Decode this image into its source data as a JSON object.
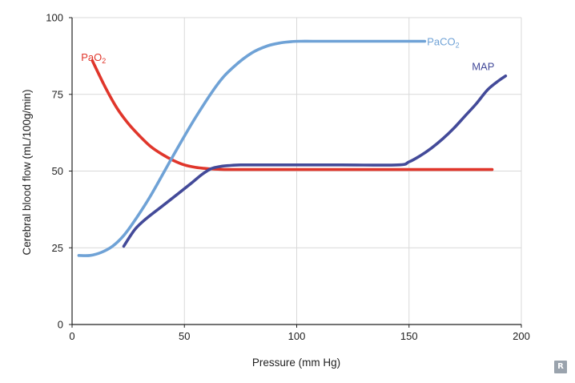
{
  "chart_data": {
    "type": "line",
    "title": "",
    "xlabel": "Pressure (mm Hg)",
    "ylabel": "Cerebral blood flow (mL/100g/min)",
    "xlim": [
      0,
      200
    ],
    "ylim": [
      0,
      100
    ],
    "xticks": [
      0,
      50,
      100,
      150,
      200
    ],
    "yticks": [
      0,
      25,
      50,
      75,
      100
    ],
    "grid": true,
    "series": [
      {
        "name": "PaO2",
        "label_main": "PaO",
        "label_sub": "2",
        "color": "#e0362b",
        "label_at": {
          "x": 4,
          "y": 87,
          "anchor": "start"
        },
        "x": [
          9,
          15,
          20,
          25,
          30,
          35,
          40,
          45,
          50,
          55,
          60,
          65,
          70,
          80,
          100,
          150,
          187
        ],
        "y": [
          86,
          77,
          70.5,
          65.5,
          61.5,
          58,
          55.5,
          53.5,
          52,
          51.2,
          50.8,
          50.6,
          50.5,
          50.5,
          50.5,
          50.5,
          50.5
        ]
      },
      {
        "name": "PaCO2",
        "label_main": "PaCO",
        "label_sub": "2",
        "color": "#6fa2d6",
        "label_at": {
          "x": 158,
          "y": 92,
          "anchor": "start"
        },
        "x": [
          3,
          8,
          13,
          18,
          23,
          28,
          35,
          45,
          55,
          65,
          72,
          80,
          87,
          93,
          98,
          102,
          107,
          120,
          140,
          157
        ],
        "y": [
          22.5,
          22.5,
          23.5,
          25.5,
          29,
          34,
          42,
          55,
          67.5,
          78.5,
          84,
          88.5,
          90.8,
          91.8,
          92.2,
          92.3,
          92.3,
          92.3,
          92.3,
          92.3
        ]
      },
      {
        "name": "MAP",
        "label_main": "MAP",
        "label_sub": "",
        "color": "#434a99",
        "label_at": {
          "x": 183,
          "y": 84,
          "anchor": "middle"
        },
        "x": [
          23,
          28,
          33,
          40,
          47,
          53,
          58,
          62,
          66,
          70,
          75,
          90,
          120,
          145,
          150,
          155,
          160,
          165,
          170,
          175,
          180,
          185,
          190,
          193
        ],
        "y": [
          25.5,
          31,
          34.5,
          38.5,
          42.5,
          46,
          49,
          50.8,
          51.5,
          51.8,
          52,
          52,
          52,
          52,
          53,
          55,
          57.5,
          60.5,
          64,
          68,
          72,
          76.5,
          79.5,
          81
        ]
      }
    ]
  }
}
